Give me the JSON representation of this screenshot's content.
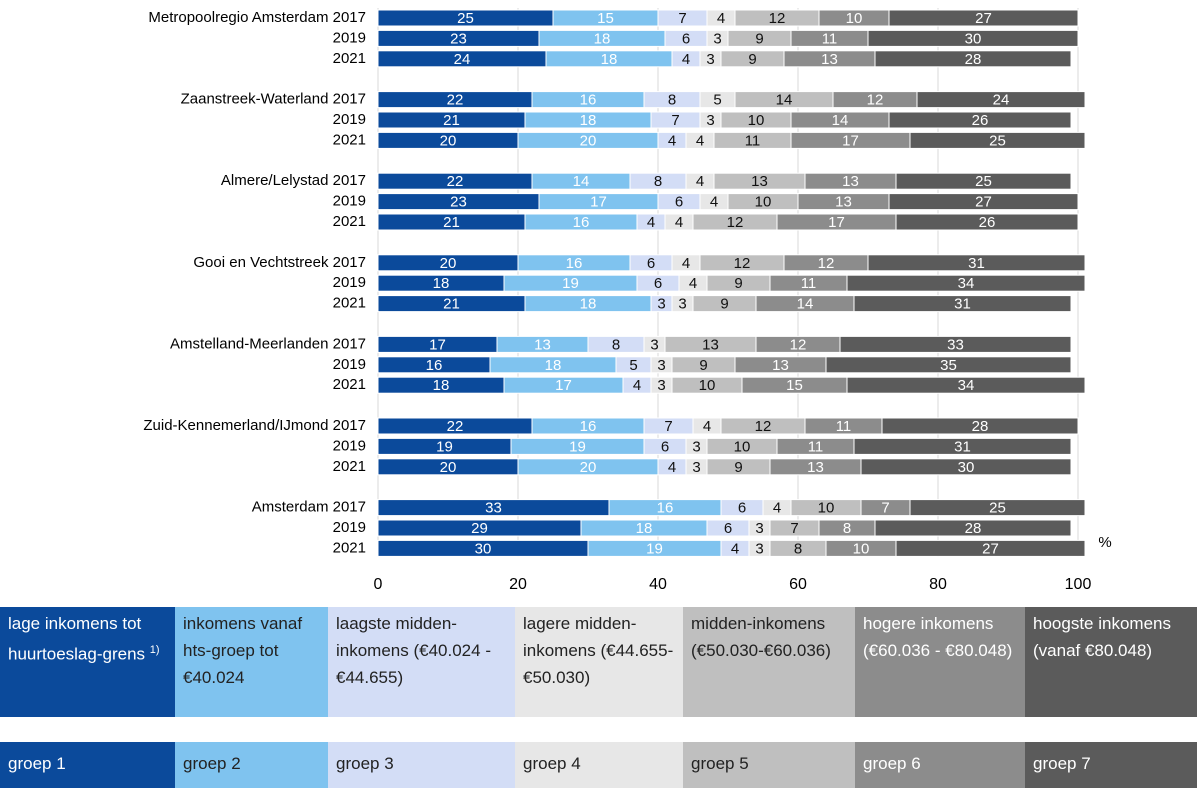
{
  "chart_data": {
    "type": "stacked-bar-horizontal",
    "categories": [
      "Metropoolregio Amsterdam 2017",
      "2019",
      "2021",
      "Zaanstreek-Waterland 2017",
      "2019",
      "2021",
      "Almere/Lelystad 2017",
      "2019",
      "2021",
      "Gooi en Vechtstreek 2017",
      "2019",
      "2021",
      "Amstelland-Meerlanden 2017",
      "2019",
      "2021",
      "Zuid-Kennemerland/IJmond 2017",
      "2019",
      "2021",
      "Amsterdam 2017",
      "2019",
      "2021"
    ],
    "series": [
      {
        "name": "groep 1",
        "description": "lage inkomens tot huurtoeslag-grens",
        "footnote_marker": "1)",
        "color": "#0b4a9b",
        "label_color": "#ffffff",
        "legend_text_color": "#ffffff",
        "values": [
          25,
          23,
          24,
          22,
          21,
          20,
          22,
          23,
          21,
          20,
          18,
          21,
          17,
          16,
          18,
          22,
          19,
          20,
          33,
          29,
          30
        ]
      },
      {
        "name": "groep 2",
        "description": "inkomens vanaf hts-groep tot €40.024",
        "color": "#7fc3ef",
        "label_color": "#ffffff",
        "legend_text_color": "#222222",
        "values": [
          15,
          18,
          18,
          16,
          18,
          20,
          14,
          17,
          16,
          16,
          19,
          18,
          13,
          18,
          17,
          16,
          19,
          20,
          16,
          18,
          19
        ]
      },
      {
        "name": "groep 3",
        "description": "laagste midden-inkomens (€40.024 - €44.655)",
        "color": "#d3ddf6",
        "label_color": "#111111",
        "legend_text_color": "#222222",
        "values": [
          7,
          6,
          4,
          8,
          7,
          4,
          8,
          6,
          4,
          6,
          6,
          3,
          8,
          5,
          4,
          7,
          6,
          4,
          6,
          6,
          4
        ]
      },
      {
        "name": "groep 4",
        "description": "lagere midden-inkomens (€44.655-€50.030)",
        "color": "#e7e7e7",
        "label_color": "#111111",
        "legend_text_color": "#222222",
        "values": [
          4,
          3,
          3,
          5,
          3,
          4,
          4,
          4,
          4,
          4,
          4,
          3,
          3,
          3,
          3,
          4,
          3,
          3,
          4,
          3,
          3
        ]
      },
      {
        "name": "groep 5",
        "description": "midden-inkomens (€50.030-€60.036)",
        "color": "#bfbfbf",
        "label_color": "#111111",
        "legend_text_color": "#222222",
        "values": [
          12,
          9,
          9,
          14,
          10,
          11,
          13,
          10,
          12,
          12,
          9,
          9,
          13,
          9,
          10,
          12,
          10,
          9,
          10,
          7,
          8
        ]
      },
      {
        "name": "groep 6",
        "description": "hogere inkomens (€60.036 - €80.048)",
        "color": "#8c8c8c",
        "label_color": "#ffffff",
        "legend_text_color": "#ffffff",
        "values": [
          10,
          11,
          13,
          12,
          14,
          17,
          13,
          13,
          17,
          12,
          11,
          14,
          12,
          13,
          15,
          11,
          11,
          13,
          7,
          8,
          10
        ]
      },
      {
        "name": "groep 7",
        "description": "hoogste inkomens (vanaf €80.048)",
        "color": "#5b5b5b",
        "label_color": "#ffffff",
        "legend_text_color": "#ffffff",
        "values": [
          27,
          30,
          28,
          24,
          26,
          25,
          25,
          27,
          26,
          31,
          34,
          31,
          33,
          35,
          34,
          28,
          31,
          30,
          25,
          28,
          27
        ]
      }
    ],
    "xlim": [
      0,
      100
    ],
    "xticks": [
      0,
      20,
      40,
      60,
      80,
      100
    ],
    "x_unit": "%",
    "grid": true
  }
}
